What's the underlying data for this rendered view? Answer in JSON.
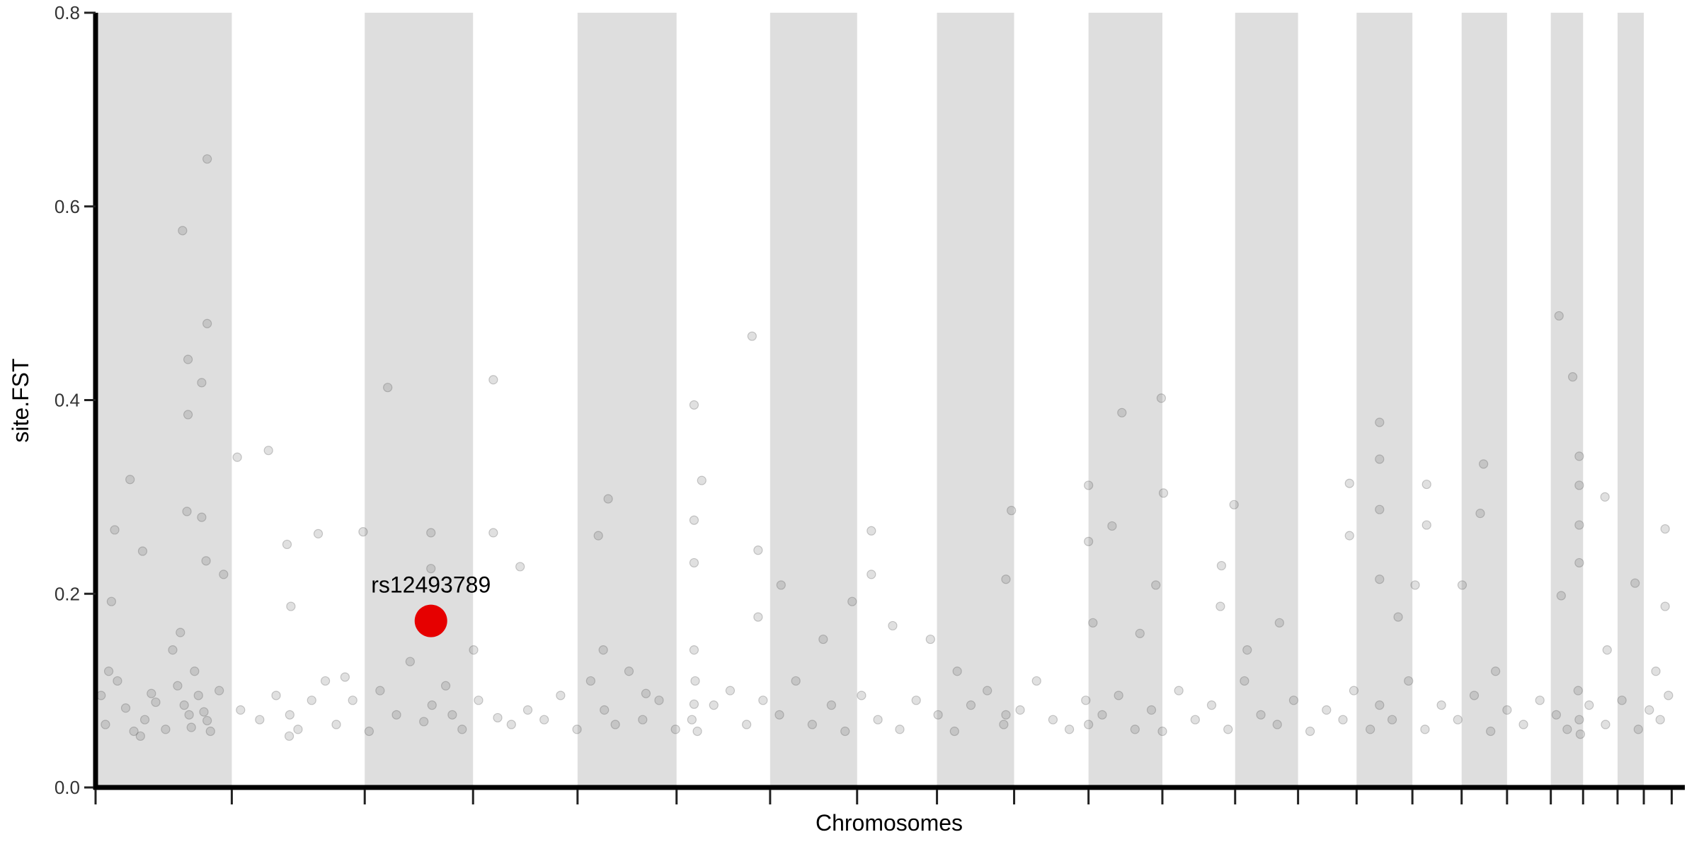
{
  "chart_data": {
    "type": "scatter",
    "title": "",
    "xlabel": "Chromosomes",
    "ylabel": "site.FST",
    "ylim": [
      0,
      0.8
    ],
    "xlim": [
      0,
      2905
    ],
    "x_units": "cumulative genome position (Mb)",
    "yticks": [
      0.0,
      0.2,
      0.4,
      0.6,
      0.8
    ],
    "ytick_labels": [
      "0.0",
      "0.2",
      "0.4",
      "0.6",
      "0.8"
    ],
    "grid": false,
    "legend": "none",
    "chromosome_lengths_mb": [
      249,
      243,
      198,
      191,
      181,
      171,
      159,
      146,
      141,
      136,
      135,
      133,
      115,
      107,
      102,
      90,
      83,
      80,
      59,
      63,
      48,
      51
    ],
    "band_color": "#dedede",
    "point_color": "#555555",
    "highlight": {
      "label": "rs12493789",
      "x": 613,
      "fst": 0.172,
      "color": "#e60000"
    },
    "points": [
      [
        204,
        0.649
      ],
      [
        159,
        0.575
      ],
      [
        204,
        0.479
      ],
      [
        169,
        0.442
      ],
      [
        194,
        0.418
      ],
      [
        169,
        0.385
      ],
      [
        63,
        0.318
      ],
      [
        167,
        0.285
      ],
      [
        194,
        0.279
      ],
      [
        35,
        0.266
      ],
      [
        86,
        0.244
      ],
      [
        202,
        0.234
      ],
      [
        234,
        0.22
      ],
      [
        29,
        0.192
      ],
      [
        155,
        0.16
      ],
      [
        141,
        0.142
      ],
      [
        181,
        0.12
      ],
      [
        24,
        0.12
      ],
      [
        102,
        0.097
      ],
      [
        171,
        0.075
      ],
      [
        204,
        0.069
      ],
      [
        82,
        0.053
      ],
      [
        259,
        0.341
      ],
      [
        316,
        0.348
      ],
      [
        350,
        0.251
      ],
      [
        357,
        0.187
      ],
      [
        407,
        0.262
      ],
      [
        456,
        0.114
      ],
      [
        354,
        0.053
      ],
      [
        534,
        0.413
      ],
      [
        489,
        0.264
      ],
      [
        613,
        0.263
      ],
      [
        613,
        0.226
      ],
      [
        727,
        0.421
      ],
      [
        727,
        0.263
      ],
      [
        776,
        0.228
      ],
      [
        691,
        0.142
      ],
      [
        652,
        0.075
      ],
      [
        937,
        0.298
      ],
      [
        919,
        0.26
      ],
      [
        928,
        0.142
      ],
      [
        1006,
        0.097
      ],
      [
        1094,
        0.395
      ],
      [
        1108,
        0.317
      ],
      [
        1094,
        0.276
      ],
      [
        1094,
        0.232
      ],
      [
        1094,
        0.142
      ],
      [
        1094,
        0.086
      ],
      [
        1200,
        0.466
      ],
      [
        1211,
        0.245
      ],
      [
        1253,
        0.209
      ],
      [
        1211,
        0.176
      ],
      [
        1330,
        0.153
      ],
      [
        1418,
        0.265
      ],
      [
        1418,
        0.22
      ],
      [
        1383,
        0.192
      ],
      [
        1457,
        0.167
      ],
      [
        1526,
        0.153
      ],
      [
        1664,
        0.215
      ],
      [
        1674,
        0.286
      ],
      [
        1575,
        0.12
      ],
      [
        1664,
        0.075
      ],
      [
        1815,
        0.312
      ],
      [
        1815,
        0.254
      ],
      [
        1858,
        0.27
      ],
      [
        1876,
        0.387
      ],
      [
        1948,
        0.402
      ],
      [
        1952,
        0.304
      ],
      [
        1938,
        0.209
      ],
      [
        1909,
        0.159
      ],
      [
        1823,
        0.17
      ],
      [
        2058,
        0.229
      ],
      [
        2081,
        0.292
      ],
      [
        2056,
        0.187
      ],
      [
        2105,
        0.142
      ],
      [
        2164,
        0.17
      ],
      [
        2292,
        0.314
      ],
      [
        2292,
        0.26
      ],
      [
        2347,
        0.377
      ],
      [
        2347,
        0.339
      ],
      [
        2347,
        0.287
      ],
      [
        2347,
        0.215
      ],
      [
        2381,
        0.176
      ],
      [
        2433,
        0.313
      ],
      [
        2433,
        0.271
      ],
      [
        2412,
        0.209
      ],
      [
        2537,
        0.334
      ],
      [
        2531,
        0.283
      ],
      [
        2498,
        0.209
      ],
      [
        2559,
        0.12
      ],
      [
        2675,
        0.487
      ],
      [
        2700,
        0.424
      ],
      [
        2712,
        0.342
      ],
      [
        2712,
        0.312
      ],
      [
        2712,
        0.271
      ],
      [
        2712,
        0.232
      ],
      [
        2679,
        0.198
      ],
      [
        2759,
        0.3
      ],
      [
        2763,
        0.142
      ],
      [
        2814,
        0.211
      ],
      [
        2869,
        0.267
      ],
      [
        2869,
        0.187
      ],
      [
        2852,
        0.12
      ],
      [
        10,
        0.095
      ],
      [
        18,
        0.065
      ],
      [
        40,
        0.11
      ],
      [
        55,
        0.082
      ],
      [
        70,
        0.058
      ],
      [
        90,
        0.07
      ],
      [
        110,
        0.088
      ],
      [
        128,
        0.06
      ],
      [
        150,
        0.105
      ],
      [
        162,
        0.085
      ],
      [
        175,
        0.062
      ],
      [
        188,
        0.095
      ],
      [
        198,
        0.078
      ],
      [
        210,
        0.058
      ],
      [
        226,
        0.1
      ],
      [
        265,
        0.08
      ],
      [
        300,
        0.07
      ],
      [
        330,
        0.095
      ],
      [
        355,
        0.075
      ],
      [
        370,
        0.06
      ],
      [
        395,
        0.09
      ],
      [
        420,
        0.11
      ],
      [
        440,
        0.065
      ],
      [
        470,
        0.09
      ],
      [
        500,
        0.058
      ],
      [
        520,
        0.1
      ],
      [
        550,
        0.075
      ],
      [
        575,
        0.13
      ],
      [
        600,
        0.068
      ],
      [
        615,
        0.085
      ],
      [
        640,
        0.105
      ],
      [
        670,
        0.06
      ],
      [
        700,
        0.09
      ],
      [
        735,
        0.072
      ],
      [
        760,
        0.065
      ],
      [
        790,
        0.08
      ],
      [
        820,
        0.07
      ],
      [
        850,
        0.095
      ],
      [
        880,
        0.06
      ],
      [
        905,
        0.11
      ],
      [
        930,
        0.08
      ],
      [
        950,
        0.065
      ],
      [
        975,
        0.12
      ],
      [
        1000,
        0.07
      ],
      [
        1030,
        0.09
      ],
      [
        1060,
        0.06
      ],
      [
        1090,
        0.07
      ],
      [
        1096,
        0.11
      ],
      [
        1100,
        0.058
      ],
      [
        1130,
        0.085
      ],
      [
        1160,
        0.1
      ],
      [
        1190,
        0.065
      ],
      [
        1220,
        0.09
      ],
      [
        1250,
        0.075
      ],
      [
        1280,
        0.11
      ],
      [
        1310,
        0.065
      ],
      [
        1345,
        0.085
      ],
      [
        1370,
        0.058
      ],
      [
        1400,
        0.095
      ],
      [
        1430,
        0.07
      ],
      [
        1470,
        0.06
      ],
      [
        1500,
        0.09
      ],
      [
        1540,
        0.075
      ],
      [
        1570,
        0.058
      ],
      [
        1600,
        0.085
      ],
      [
        1630,
        0.1
      ],
      [
        1660,
        0.065
      ],
      [
        1690,
        0.08
      ],
      [
        1720,
        0.11
      ],
      [
        1750,
        0.07
      ],
      [
        1780,
        0.06
      ],
      [
        1810,
        0.09
      ],
      [
        1815,
        0.065
      ],
      [
        1840,
        0.075
      ],
      [
        1870,
        0.095
      ],
      [
        1900,
        0.06
      ],
      [
        1930,
        0.08
      ],
      [
        1950,
        0.058
      ],
      [
        1980,
        0.1
      ],
      [
        2010,
        0.07
      ],
      [
        2040,
        0.085
      ],
      [
        2070,
        0.06
      ],
      [
        2100,
        0.11
      ],
      [
        2130,
        0.075
      ],
      [
        2160,
        0.065
      ],
      [
        2190,
        0.09
      ],
      [
        2220,
        0.058
      ],
      [
        2250,
        0.08
      ],
      [
        2280,
        0.07
      ],
      [
        2300,
        0.1
      ],
      [
        2330,
        0.06
      ],
      [
        2347,
        0.085
      ],
      [
        2370,
        0.07
      ],
      [
        2400,
        0.11
      ],
      [
        2430,
        0.06
      ],
      [
        2460,
        0.085
      ],
      [
        2490,
        0.07
      ],
      [
        2520,
        0.095
      ],
      [
        2550,
        0.058
      ],
      [
        2580,
        0.08
      ],
      [
        2610,
        0.065
      ],
      [
        2640,
        0.09
      ],
      [
        2670,
        0.075
      ],
      [
        2690,
        0.06
      ],
      [
        2710,
        0.1
      ],
      [
        2712,
        0.07
      ],
      [
        2714,
        0.055
      ],
      [
        2730,
        0.085
      ],
      [
        2760,
        0.065
      ],
      [
        2790,
        0.09
      ],
      [
        2820,
        0.06
      ],
      [
        2840,
        0.08
      ],
      [
        2860,
        0.07
      ],
      [
        2875,
        0.095
      ]
    ]
  }
}
